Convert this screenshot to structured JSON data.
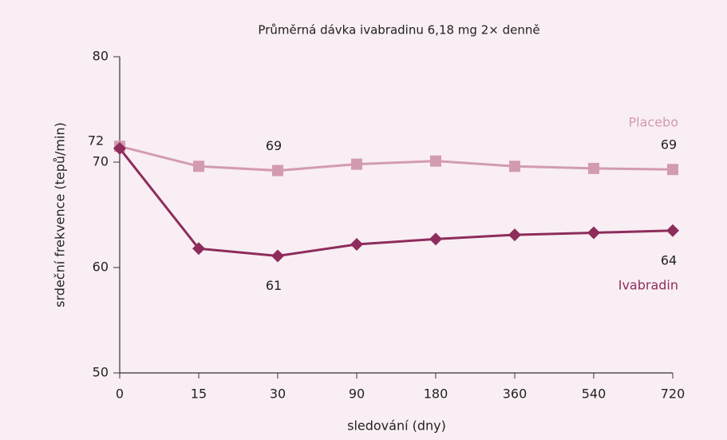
{
  "chart_data": {
    "type": "line",
    "title": "Průměrná dávka ivabradinu 6,18 mg 2× denně",
    "xlabel": "sledování (dny)",
    "ylabel": "srdeční frekvence (tepů/min)",
    "categories": [
      "0",
      "15",
      "30",
      "90",
      "180",
      "360",
      "540",
      "720"
    ],
    "series": [
      {
        "name": "Placebo",
        "color": "#d39bb0",
        "marker": "square",
        "values": [
          71.5,
          69.6,
          69.2,
          69.8,
          70.1,
          69.6,
          69.4,
          69.3
        ],
        "value_labels": [
          "72",
          null,
          "69",
          null,
          null,
          null,
          null,
          "69"
        ]
      },
      {
        "name": "Ivabradin",
        "color": "#8e2c5c",
        "marker": "diamond",
        "values": [
          71.3,
          61.8,
          61.1,
          62.2,
          62.7,
          63.1,
          63.3,
          63.5
        ],
        "value_labels": [
          null,
          null,
          "61",
          null,
          null,
          null,
          null,
          "64"
        ]
      }
    ],
    "ylim": [
      50,
      80
    ],
    "yticks": [
      50,
      60,
      70,
      80
    ]
  }
}
